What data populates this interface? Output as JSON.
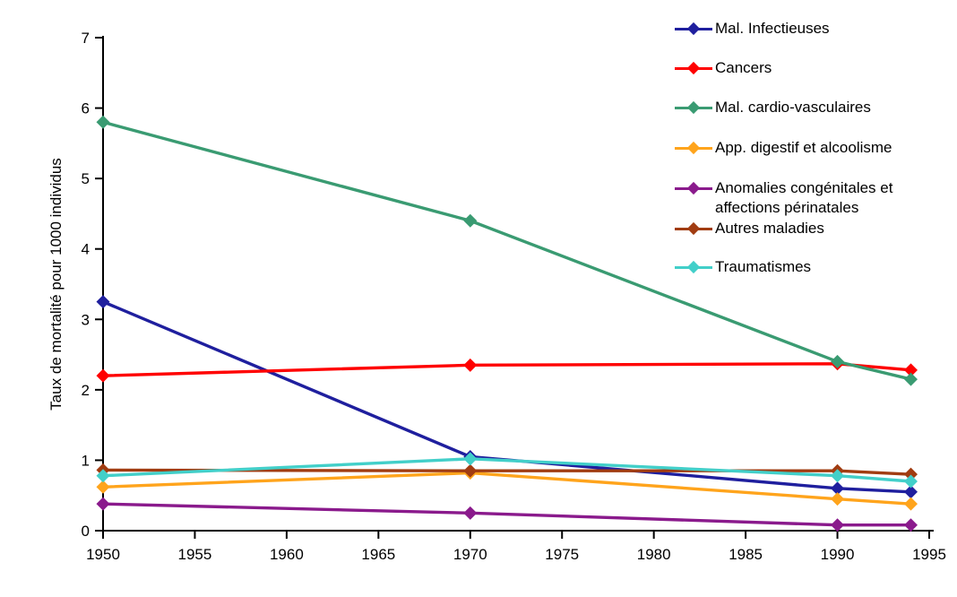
{
  "chart_data": {
    "type": "line",
    "x": [
      1950,
      1970,
      1990,
      1994
    ],
    "series": [
      {
        "name": "Mal. Infectieuses",
        "color": "#1F1F9E",
        "values": [
          3.25,
          1.05,
          0.6,
          0.55
        ]
      },
      {
        "name": "Cancers",
        "color": "#FF0000",
        "values": [
          2.2,
          2.35,
          2.37,
          2.28
        ]
      },
      {
        "name": "Mal. cardio-vasculaires",
        "color": "#3A9B72",
        "values": [
          5.8,
          4.4,
          2.4,
          2.15
        ]
      },
      {
        "name": "App. digestif et alcoolisme",
        "color": "#FFA41C",
        "values": [
          0.62,
          0.82,
          0.45,
          0.38
        ]
      },
      {
        "name": "Anomalies congénitales et affections périnatales",
        "color": "#8A1A8C",
        "values": [
          0.38,
          0.25,
          0.08,
          0.08
        ]
      },
      {
        "name": "Autres maladies",
        "color": "#A13C11",
        "values": [
          0.86,
          0.85,
          0.85,
          0.8
        ]
      },
      {
        "name": "Traumatismes",
        "color": "#42CFC9",
        "values": [
          0.78,
          1.02,
          0.78,
          0.7
        ]
      }
    ],
    "title": "",
    "xlabel": "",
    "ylabel": "Taux de mortalité pour 1000 individus",
    "xlim": [
      1950,
      1995
    ],
    "ylim": [
      0,
      7
    ],
    "xticks": [
      1950,
      1955,
      1960,
      1965,
      1970,
      1975,
      1980,
      1985,
      1990,
      1995
    ],
    "yticks": [
      0,
      1,
      2,
      3,
      4,
      5,
      6,
      7
    ],
    "grid": false,
    "legend_position": "right",
    "marker": "diamond",
    "axis_color": "#000000",
    "background_color": "#FFFFFF"
  }
}
